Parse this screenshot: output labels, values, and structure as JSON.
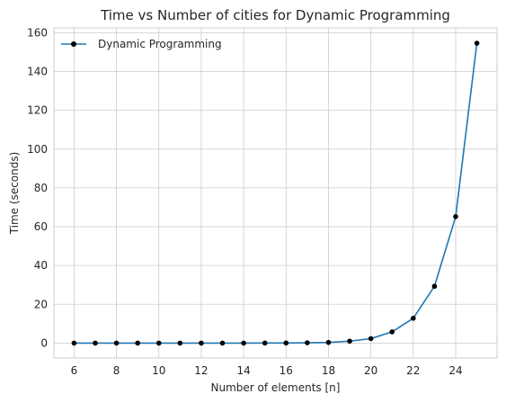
{
  "chart_data": {
    "type": "line",
    "title": "Time vs Number of cities for Dynamic Programming",
    "xlabel": "Number of elements [n]",
    "ylabel": "Time (seconds)",
    "xlim": [
      5.05,
      25.95
    ],
    "ylim": [
      -7.7,
      162.5
    ],
    "xticks": [
      6,
      8,
      10,
      12,
      14,
      16,
      18,
      20,
      22,
      24
    ],
    "yticks": [
      0,
      20,
      40,
      60,
      80,
      100,
      120,
      140,
      160
    ],
    "grid": true,
    "legend_position": "top-left",
    "series": [
      {
        "name": "Dynamic Programming",
        "color": "#1f77b4",
        "marker_color": "#000000",
        "x": [
          6,
          7,
          8,
          9,
          10,
          11,
          12,
          13,
          14,
          15,
          16,
          17,
          18,
          19,
          20,
          21,
          22,
          23,
          24,
          25
        ],
        "y": [
          0,
          0,
          0,
          0,
          0,
          0,
          0,
          0,
          0,
          0.02,
          0.06,
          0.15,
          0.35,
          1.0,
          2.3,
          5.8,
          12.8,
          29.3,
          65.2,
          154.6
        ]
      }
    ]
  }
}
